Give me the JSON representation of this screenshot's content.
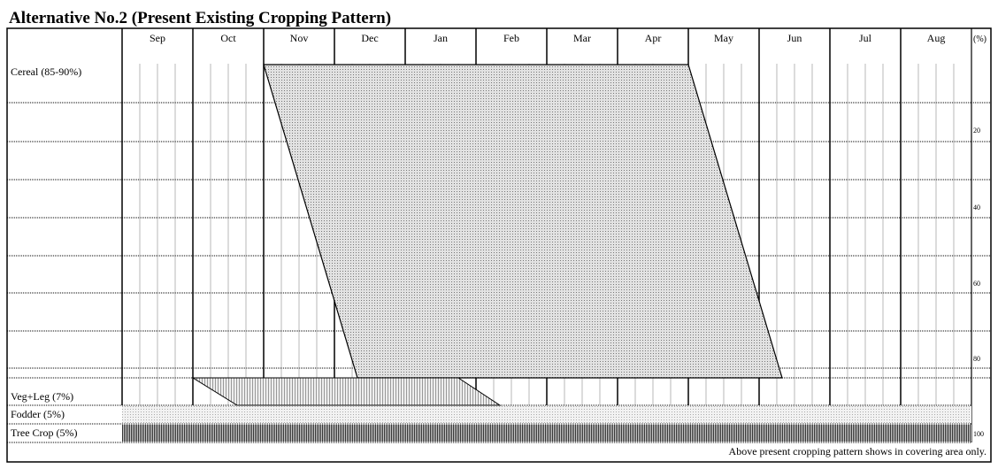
{
  "title": "Alternative No.2 (Present Existing Cropping Pattern)",
  "months": [
    "Sep",
    "Oct",
    "Nov",
    "Dec",
    "Jan",
    "Feb",
    "Mar",
    "Apr",
    "May",
    "Jun",
    "Jul",
    "Aug"
  ],
  "scale_label": "(%)",
  "scale_ticks": [
    "20",
    "40",
    "60",
    "80",
    "100"
  ],
  "crops": [
    "Cereal (85-90%)",
    "Veg+Leg (7%)",
    "Fodder (5%)",
    "Tree Crop (5%)"
  ],
  "note": "Above present cropping pattern shows in covering area only."
}
